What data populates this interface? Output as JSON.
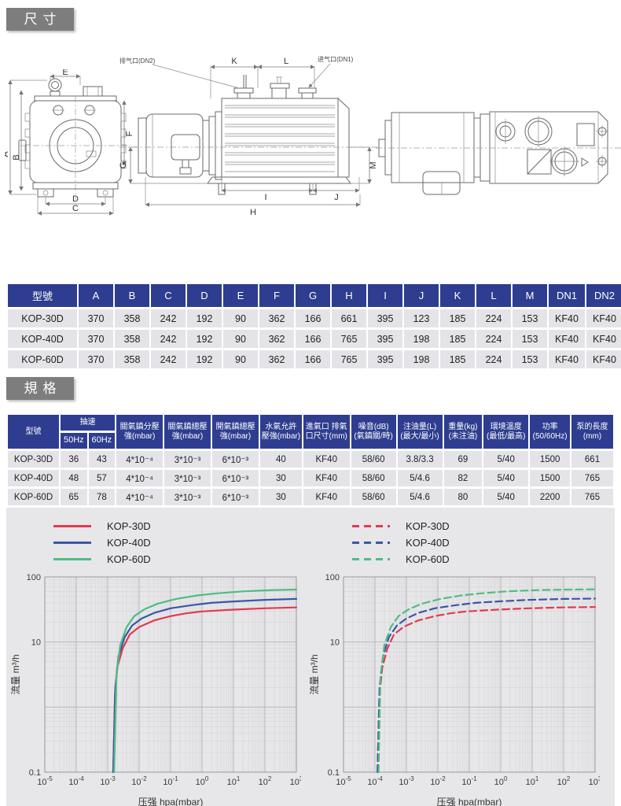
{
  "header": {
    "dimensions_title": "尺寸",
    "specs_title": "規格"
  },
  "drawings": {
    "front": {
      "dim_a": "A",
      "dim_b": "B",
      "dim_c": "C",
      "dim_d": "D",
      "dim_e": "E",
      "dim_f": "F"
    },
    "side": {
      "dim_g": "G",
      "dim_h": "H",
      "dim_i": "I",
      "dim_j": "J",
      "dim_k": "K",
      "dim_l": "L",
      "dim_m": "M",
      "exhaust_label": "排气口(DN2)",
      "intake_label": "进气口(DN1)"
    }
  },
  "dimension_table": {
    "headers": [
      "型號",
      "A",
      "B",
      "C",
      "D",
      "E",
      "F",
      "G",
      "H",
      "I",
      "J",
      "K",
      "L",
      "M",
      "DN1",
      "DN2"
    ],
    "rows": [
      [
        "KOP-30D",
        "370",
        "358",
        "242",
        "192",
        "90",
        "362",
        "166",
        "661",
        "395",
        "123",
        "185",
        "224",
        "153",
        "KF40",
        "KF40"
      ],
      [
        "KOP-40D",
        "370",
        "358",
        "242",
        "192",
        "90",
        "362",
        "166",
        "765",
        "395",
        "198",
        "185",
        "224",
        "153",
        "KF40",
        "KF40"
      ],
      [
        "KOP-60D",
        "370",
        "358",
        "242",
        "192",
        "90",
        "362",
        "166",
        "765",
        "395",
        "198",
        "185",
        "224",
        "153",
        "KF40",
        "KF40"
      ]
    ]
  },
  "spec_table": {
    "model_header": "型號",
    "speed_header": "抽速",
    "speed_sub": [
      "50Hz",
      "60Hz"
    ],
    "col_headers": [
      [
        "關氣鎮分壓",
        "強(mbar)"
      ],
      [
        "關氣鎮總壓",
        "強(mbar)"
      ],
      [
        "開氣鎮總壓",
        "強(mbar)"
      ],
      [
        "水氣允許",
        "壓強(mbar)"
      ],
      [
        "進氣口 排氣",
        "口尺寸(mm)"
      ],
      [
        "噪音(dB)",
        "(氣鎮關/時)"
      ],
      [
        "注油量(L)",
        "(最大/最小)"
      ],
      [
        "重量(kg)",
        "(未注油)"
      ],
      [
        "環境溫度",
        "(最低/最高)"
      ],
      [
        "功率",
        "(50/60Hz)"
      ],
      [
        "泵的長度",
        "(mm)"
      ]
    ],
    "rows": [
      [
        "KOP-30D",
        "36",
        "43",
        "4*10⁻⁴",
        "3*10⁻³",
        "6*10⁻³",
        "40",
        "KF40",
        "58/60",
        "3.8/3.3",
        "69",
        "5/40",
        "1500",
        "661"
      ],
      [
        "KOP-40D",
        "48",
        "57",
        "4*10⁻⁴",
        "3*10⁻³",
        "6*10⁻³",
        "30",
        "KF40",
        "58/60",
        "5/4.6",
        "82",
        "5/40",
        "1500",
        "765"
      ],
      [
        "KOP-60D",
        "65",
        "78",
        "4*10⁻⁴",
        "3*10⁻³",
        "6*10⁻³",
        "30",
        "KF40",
        "58/60",
        "5/4.6",
        "80",
        "5/40",
        "2200",
        "765"
      ]
    ]
  },
  "chart_data": [
    {
      "type": "line",
      "x_scale": "log",
      "y_scale": "log",
      "xlabel": "压强 hpa(mbar)",
      "ylabel": "流量 m³/h",
      "x_ticks_exp": [
        -5,
        -4,
        -3,
        -2,
        -1,
        0,
        1,
        2,
        3
      ],
      "y_ticks": [
        {
          "label": "100",
          "value": 100
        },
        {
          "label": "10",
          "value": 10
        },
        {
          "label": "0.1",
          "value": 0.1
        }
      ],
      "xlim": [
        1e-05,
        1000
      ],
      "ylim": [
        0.1,
        100
      ],
      "line_style": "solid",
      "legend_position": "top-left",
      "series": [
        {
          "name": "KOP-30D",
          "color": "#e23a50",
          "points": [
            [
              0.0015,
              0.1
            ],
            [
              0.0017,
              1.5
            ],
            [
              0.002,
              4
            ],
            [
              0.003,
              8
            ],
            [
              0.005,
              13
            ],
            [
              0.01,
              17
            ],
            [
              0.03,
              21.5
            ],
            [
              0.1,
              25
            ],
            [
              0.3,
              27.5
            ],
            [
              1,
              29.5
            ],
            [
              10,
              31.5
            ],
            [
              100,
              33
            ],
            [
              1000,
              34
            ]
          ]
        },
        {
          "name": "KOP-40D",
          "color": "#3c56a6",
          "points": [
            [
              0.0015,
              0.1
            ],
            [
              0.00175,
              2
            ],
            [
              0.0022,
              6
            ],
            [
              0.0035,
              12
            ],
            [
              0.006,
              18
            ],
            [
              0.012,
              23
            ],
            [
              0.03,
              28
            ],
            [
              0.1,
              33
            ],
            [
              0.5,
              37
            ],
            [
              2,
              40
            ],
            [
              10,
              42
            ],
            [
              100,
              44.5
            ],
            [
              1000,
              46
            ]
          ]
        },
        {
          "name": "KOP-60D",
          "color": "#4fbc83",
          "points": [
            [
              0.0016,
              0.1
            ],
            [
              0.0019,
              3
            ],
            [
              0.0025,
              9
            ],
            [
              0.004,
              17
            ],
            [
              0.007,
              25
            ],
            [
              0.015,
              32
            ],
            [
              0.04,
              39
            ],
            [
              0.15,
              46
            ],
            [
              0.7,
              52
            ],
            [
              3,
              56
            ],
            [
              20,
              60
            ],
            [
              200,
              63
            ],
            [
              1000,
              64
            ]
          ]
        }
      ]
    },
    {
      "type": "line",
      "x_scale": "log",
      "y_scale": "log",
      "xlabel": "压强 hpa(mbar)",
      "ylabel": "流量 m³/h",
      "x_ticks_exp": [
        -5,
        -4,
        -3,
        -2,
        -1,
        0,
        1,
        2,
        3
      ],
      "y_ticks": [
        {
          "label": "100",
          "value": 100
        },
        {
          "label": "10",
          "value": 10
        },
        {
          "label": "0.1",
          "value": 0.1
        }
      ],
      "xlim": [
        1e-05,
        1000
      ],
      "ylim": [
        0.1,
        100
      ],
      "line_style": "dashed",
      "legend_position": "top-left",
      "series": [
        {
          "name": "KOP-30D",
          "color": "#e23a50",
          "points": [
            [
              0.00012,
              0.1
            ],
            [
              0.00014,
              1.5
            ],
            [
              0.00017,
              4
            ],
            [
              0.00025,
              8
            ],
            [
              0.0004,
              13
            ],
            [
              0.0008,
              17
            ],
            [
              0.0024,
              21.5
            ],
            [
              0.008,
              25
            ],
            [
              0.024,
              27.5
            ],
            [
              0.08,
              29.5
            ],
            [
              0.8,
              31.5
            ],
            [
              8,
              33
            ],
            [
              100,
              34
            ],
            [
              1000,
              34.5
            ]
          ]
        },
        {
          "name": "KOP-40D",
          "color": "#3c56a6",
          "points": [
            [
              0.00012,
              0.1
            ],
            [
              0.00014,
              2
            ],
            [
              0.00018,
              6
            ],
            [
              0.00028,
              12
            ],
            [
              0.0005,
              18
            ],
            [
              0.001,
              23
            ],
            [
              0.0024,
              28
            ],
            [
              0.008,
              33
            ],
            [
              0.04,
              37
            ],
            [
              0.16,
              40
            ],
            [
              0.8,
              42
            ],
            [
              8,
              44.5
            ],
            [
              100,
              46
            ],
            [
              1000,
              46.5
            ]
          ]
        },
        {
          "name": "KOP-60D",
          "color": "#4fbc83",
          "points": [
            [
              0.00013,
              0.1
            ],
            [
              0.00015,
              3
            ],
            [
              0.0002,
              9
            ],
            [
              0.00032,
              17
            ],
            [
              0.00056,
              25
            ],
            [
              0.0012,
              32
            ],
            [
              0.0032,
              39
            ],
            [
              0.012,
              46
            ],
            [
              0.056,
              52
            ],
            [
              0.24,
              56
            ],
            [
              1.6,
              60
            ],
            [
              16,
              63
            ],
            [
              200,
              64
            ],
            [
              1000,
              64.5
            ]
          ]
        }
      ]
    }
  ],
  "colors": {
    "table_header_blue": "#2e3d8f",
    "row_gray": "#e4e3e7",
    "panel_gray": "#e7e6e8",
    "section_gray": "#7d7d7d",
    "curve_red": "#e23a50",
    "curve_blue": "#3c56a6",
    "curve_green": "#4fbc83"
  }
}
